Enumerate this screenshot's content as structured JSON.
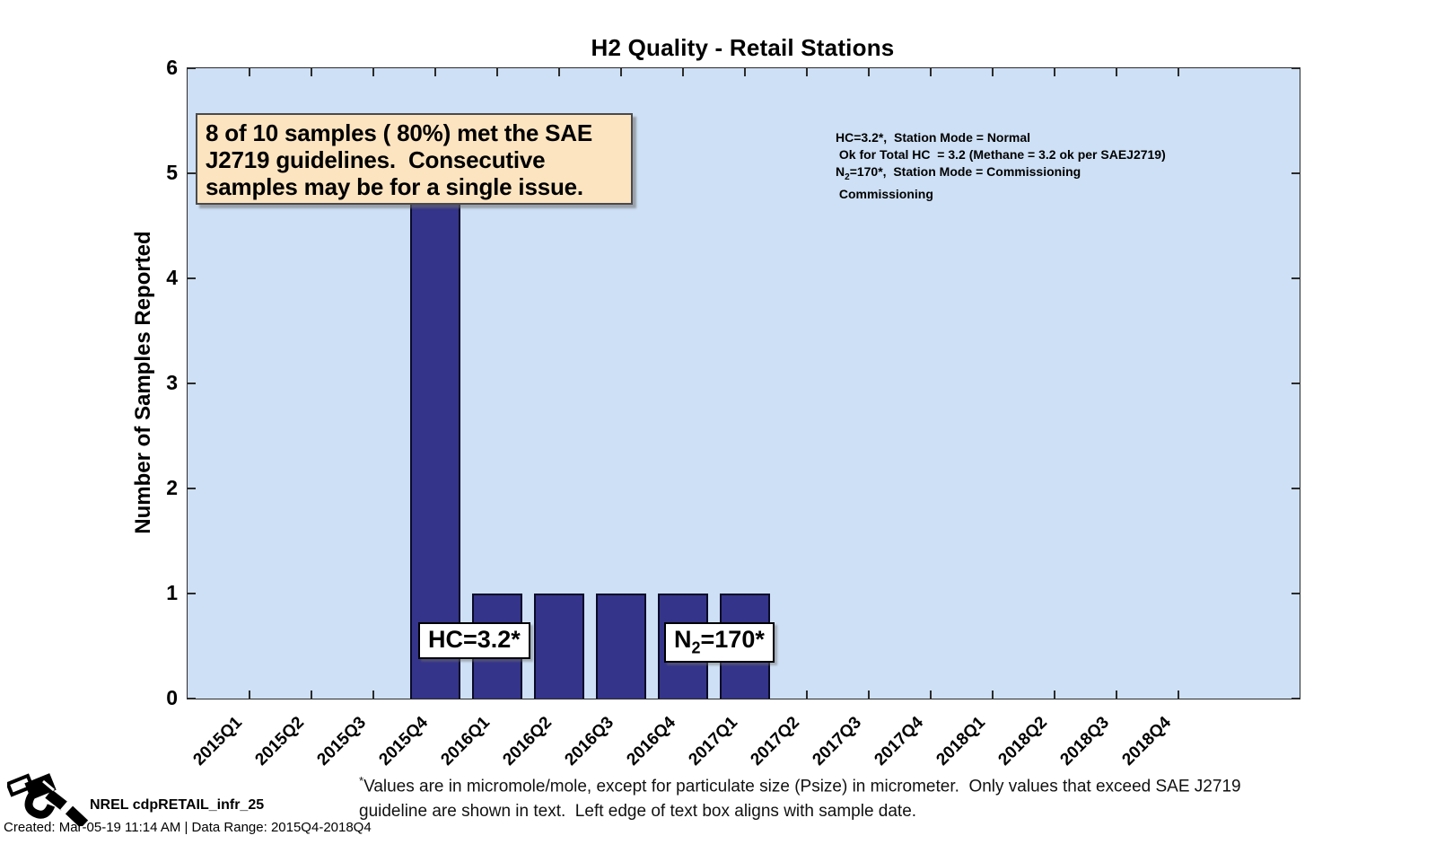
{
  "chart_data": {
    "type": "bar",
    "title": "H2 Quality - Retail Stations",
    "xlabel": "",
    "ylabel": "Number of Samples Reported",
    "categories": [
      "2015Q1",
      "2015Q2",
      "2015Q3",
      "2015Q4",
      "2016Q1",
      "2016Q2",
      "2016Q3",
      "2016Q4",
      "2017Q1",
      "2017Q2",
      "2017Q3",
      "2017Q4",
      "2018Q1",
      "2018Q2",
      "2018Q3",
      "2018Q4"
    ],
    "values": [
      0,
      0,
      0,
      5,
      1,
      1,
      1,
      1,
      1,
      0,
      0,
      0,
      0,
      0,
      0,
      0
    ],
    "ylim": [
      0,
      6
    ],
    "yticks": [
      0,
      1,
      2,
      3,
      4,
      5,
      6
    ],
    "grid": false,
    "legend_position": "none",
    "colors": {
      "bar_fill": "#34348a",
      "bar_edge": "#0a0a28",
      "plot_background": "#cee0f5",
      "figure_background": "#ffffff"
    }
  },
  "callout_box": {
    "background": "#fce4c0",
    "lines": [
      "8 of 10 samples ( 80%) met the SAE",
      "J2719 guidelines.  Consecutive",
      "samples may be for a single issue."
    ]
  },
  "right_annotation": {
    "lines": [
      [
        {
          "t": "HC=3.2*,  Station Mode = Normal"
        }
      ],
      [
        {
          "t": " Ok for Total HC  = 3.2 (Methane = 3.2 ok per SAEJ2719)"
        }
      ],
      [
        {
          "t": "N"
        },
        {
          "t": "2",
          "sub": true
        },
        {
          "t": "=170*,  Station Mode = Commissioning"
        }
      ],
      [
        {
          "t": " Commissioning"
        }
      ]
    ]
  },
  "bar_labels": [
    {
      "id": "bar-label-hc",
      "category": "2015Q4",
      "segments": [
        {
          "t": "HC=3.2*"
        }
      ]
    },
    {
      "id": "bar-label-n2",
      "category": "2016Q4",
      "segments": [
        {
          "t": "N"
        },
        {
          "t": "2",
          "sub": true
        },
        {
          "t": "=170*"
        }
      ]
    }
  ],
  "footnote": {
    "asterisk": "*",
    "line1": "Values are in micromole/mole, except for particulate size (Psize) in micrometer.  Only values that exceed SAE J2719",
    "line2": "guideline are shown in text.  Left edge of text box aligns with sample date."
  },
  "credit": {
    "logo_icon": "fuel-nozzle-icon",
    "source_label": "NREL cdpRETAIL_infr_25",
    "created_line": "Created: Mar-05-19 11:14 AM | Data Range: 2015Q4-2018Q4"
  }
}
